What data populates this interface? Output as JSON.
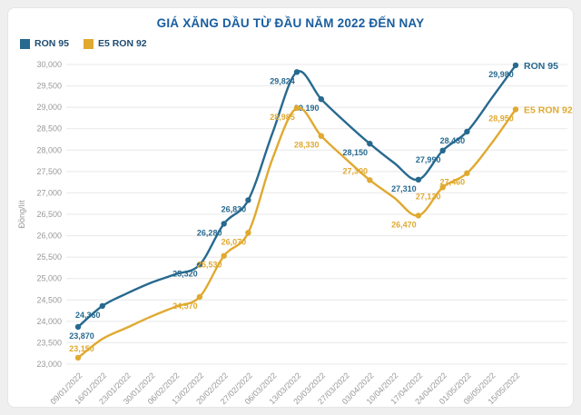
{
  "colors": {
    "page_background": "#efefef",
    "card_background": "#ffffff",
    "title": "#185d9e",
    "legend_text": "#1d4b70",
    "axis_text": "#999999",
    "grid": "#e8e8e8",
    "ron95": "#27698f",
    "e5ron92": "#e0a930"
  },
  "chart_data": {
    "type": "line",
    "title": "GIÁ XĂNG DẦU TỪ ĐẦU NĂM 2022 ĐẾN NAY",
    "ylabel": "Đồng/lít",
    "ylim": [
      23000,
      30000
    ],
    "ytick_step": 500,
    "grid": true,
    "legend_position": "top-left",
    "categories": [
      "09/01/2022",
      "16/01/2022",
      "23/01/2022",
      "30/01/2022",
      "06/02/2022",
      "13/02/2022",
      "20/02/2022",
      "27/02/2022",
      "06/03/2022",
      "13/03/2022",
      "20/03/2022",
      "27/03/2022",
      "03/04/2022",
      "10/04/2022",
      "17/04/2022",
      "24/04/2022",
      "01/05/2022",
      "08/05/2022",
      "15/05/2022"
    ],
    "series": [
      {
        "name": "RON 95",
        "color": "#27698f",
        "values": [
          23870,
          24360,
          24650,
          24900,
          25100,
          25320,
          26280,
          26830,
          28400,
          29824,
          29190,
          28650,
          28150,
          27700,
          27310,
          27990,
          28430,
          29200,
          29980
        ],
        "labeled": [
          true,
          true,
          false,
          false,
          false,
          true,
          true,
          true,
          false,
          true,
          true,
          false,
          true,
          false,
          true,
          true,
          true,
          false,
          true
        ],
        "label_pos_default": "below",
        "label_pos_overrides": {}
      },
      {
        "name": "E5 RON 92",
        "color": "#e0a930",
        "values": [
          23150,
          23590,
          23850,
          24110,
          24340,
          24570,
          25530,
          26070,
          27800,
          28985,
          28330,
          27800,
          27300,
          26890,
          26470,
          27130,
          27460,
          28150,
          28950
        ],
        "labeled": [
          true,
          false,
          false,
          false,
          false,
          true,
          true,
          true,
          false,
          true,
          true,
          false,
          true,
          false,
          true,
          true,
          true,
          false,
          true
        ],
        "label_pos_default": "below",
        "label_pos_overrides": {
          "0": "above",
          "12": "above"
        }
      }
    ]
  }
}
